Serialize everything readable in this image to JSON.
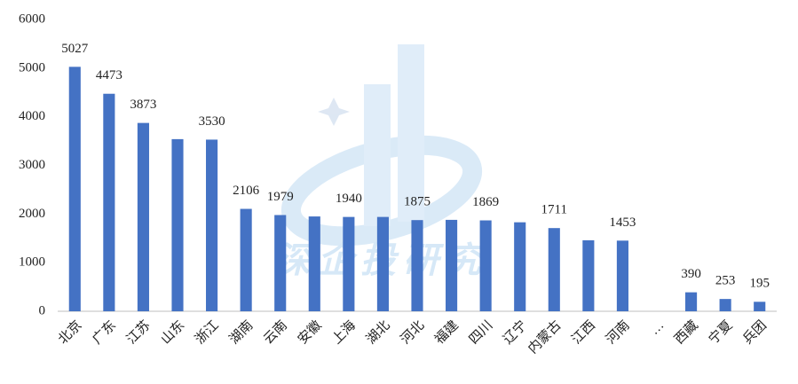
{
  "chart_data": {
    "type": "bar",
    "categories": [
      "北京",
      "广东",
      "江苏",
      "山东",
      "浙江",
      "湖南",
      "云南",
      "安徽",
      "上海",
      "湖北",
      "河北",
      "福建",
      "四川",
      "辽宁",
      "内蒙古",
      "江西",
      "河南",
      "…",
      "西藏",
      "宁夏",
      "兵团"
    ],
    "values": [
      5027,
      4473,
      3873,
      3540,
      3530,
      2106,
      1979,
      1950,
      1940,
      1940,
      1875,
      1880,
      1869,
      1830,
      1711,
      1460,
      1453,
      null,
      390,
      253,
      195
    ],
    "value_labels": [
      "5027",
      "4473",
      "3873",
      null,
      "3530",
      "2106",
      "1979",
      null,
      "1940",
      null,
      "1875",
      null,
      "1869",
      null,
      "1711",
      null,
      "1453",
      null,
      "390",
      "253",
      "195"
    ],
    "color": "#4472c4",
    "ylim": [
      0,
      6000
    ],
    "yticks": [
      0,
      1000,
      2000,
      3000,
      4000,
      5000,
      6000
    ],
    "grid": false,
    "watermark": "深企投研究"
  }
}
